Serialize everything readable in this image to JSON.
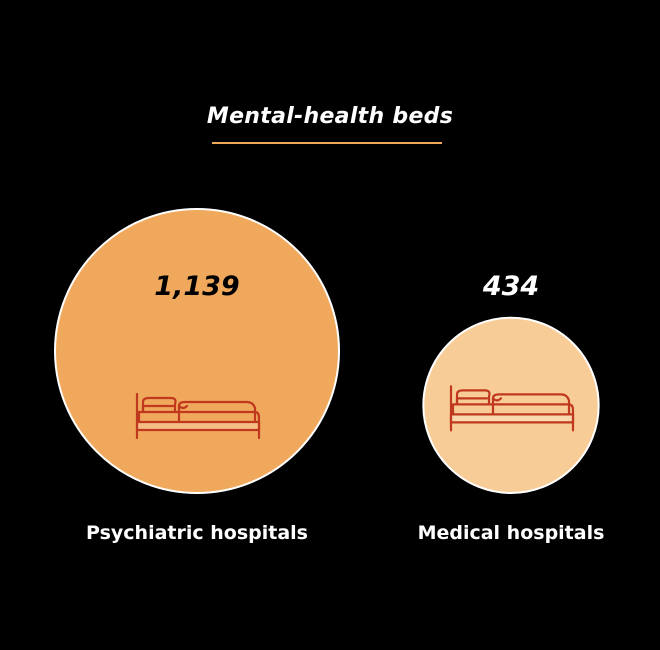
{
  "chart_data": {
    "type": "bubble",
    "title": "Mental-health beds",
    "categories": [
      "Psychiatric hospitals",
      "Medical hospitals"
    ],
    "values": [
      1139,
      434
    ],
    "value_labels": [
      "1,139",
      "434"
    ],
    "colors": [
      "#f0a95c",
      "#f7cc96"
    ],
    "label_colors": [
      "#000000",
      "#ffffff"
    ],
    "icon": "bed-icon",
    "icon_color": "#c0391e",
    "accent": "#f0a95c"
  }
}
